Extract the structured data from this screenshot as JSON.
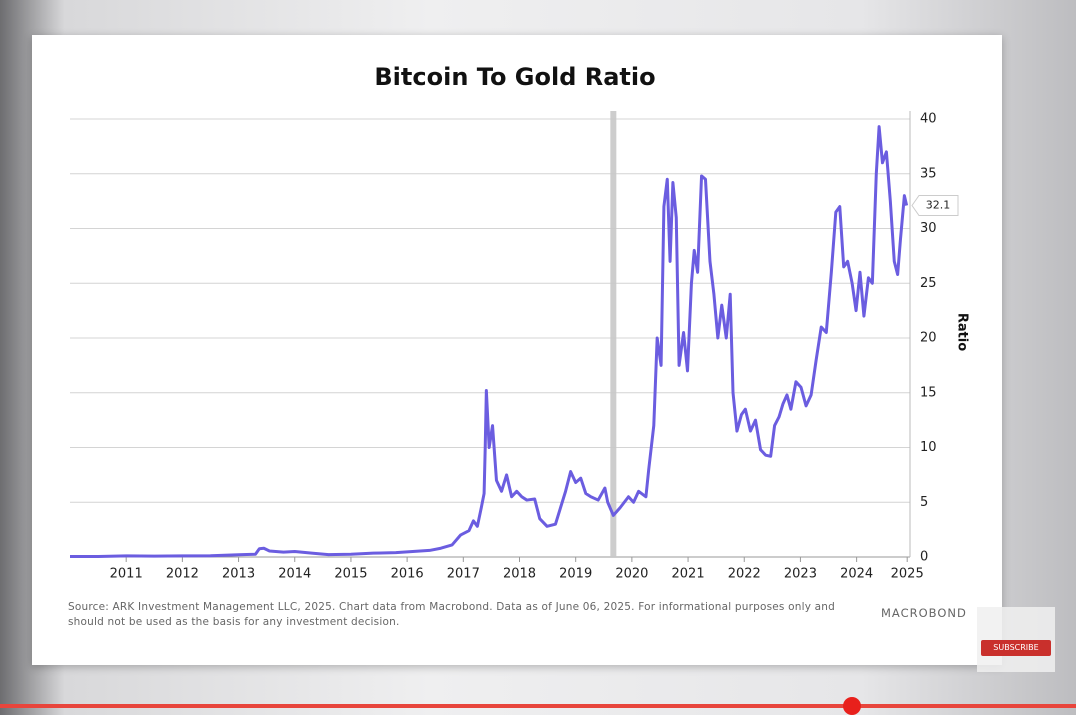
{
  "chart_data": {
    "type": "line",
    "title": "Bitcoin To Gold Ratio",
    "y_label": "Ratio",
    "x": [
      2010.5,
      2011.0,
      2011.5,
      2012.0,
      2012.5,
      2013.0,
      2013.5,
      2013.8,
      2013.87,
      2013.95,
      2014.05,
      2014.3,
      2014.5,
      2014.8,
      2015.1,
      2015.5,
      2015.9,
      2016.3,
      2016.6,
      2016.9,
      2017.1,
      2017.3,
      2017.45,
      2017.6,
      2017.68,
      2017.75,
      2017.82,
      2017.87,
      2017.89,
      2017.91,
      2017.96,
      2018.02,
      2018.09,
      2018.18,
      2018.27,
      2018.36,
      2018.45,
      2018.54,
      2018.63,
      2018.77,
      2018.86,
      2018.99,
      2019.14,
      2019.23,
      2019.32,
      2019.41,
      2019.5,
      2019.59,
      2019.68,
      2019.77,
      2019.9,
      2020.02,
      2020.07,
      2020.17,
      2020.29,
      2020.44,
      2020.53,
      2020.62,
      2020.75,
      2020.8,
      2020.89,
      2020.95,
      2021.02,
      2021.07,
      2021.13,
      2021.18,
      2021.23,
      2021.29,
      2021.34,
      2021.42,
      2021.49,
      2021.56,
      2021.61,
      2021.67,
      2021.74,
      2021.81,
      2021.89,
      2021.96,
      2022.03,
      2022.1,
      2022.18,
      2022.25,
      2022.3,
      2022.37,
      2022.45,
      2022.52,
      2022.61,
      2022.7,
      2022.79,
      2022.88,
      2022.97,
      2023.04,
      2023.12,
      2023.19,
      2023.26,
      2023.33,
      2023.42,
      2023.51,
      2023.6,
      2023.69,
      2023.78,
      2023.87,
      2023.96,
      2024.05,
      2024.13,
      2024.2,
      2024.27,
      2024.34,
      2024.42,
      2024.49,
      2024.56,
      2024.63,
      2024.71,
      2024.78,
      2024.85,
      2024.9,
      2024.96,
      2025.03,
      2025.1,
      2025.17,
      2025.23,
      2025.28,
      2025.35,
      2025.39
    ],
    "series": [
      {
        "name": "Bitcoin To Gold Ratio",
        "color": "#6b5de0",
        "values": [
          0.05,
          0.05,
          0.1,
          0.08,
          0.1,
          0.12,
          0.2,
          0.25,
          0.75,
          0.8,
          0.55,
          0.45,
          0.5,
          0.35,
          0.22,
          0.25,
          0.35,
          0.4,
          0.5,
          0.6,
          0.8,
          1.1,
          2.0,
          2.4,
          3.3,
          2.8,
          4.5,
          5.8,
          10,
          15.2,
          10,
          12,
          7,
          6,
          7.5,
          5.5,
          6,
          5.5,
          5.2,
          5.3,
          3.5,
          2.8,
          3.0,
          4.5,
          6,
          7.8,
          6.8,
          7.2,
          5.8,
          5.5,
          5.2,
          6.3,
          5,
          3.8,
          4.5,
          5.5,
          5,
          6,
          5.5,
          8,
          12,
          20,
          17.5,
          32,
          34.5,
          27,
          34.2,
          31,
          17.5,
          20.5,
          17,
          25,
          28,
          26,
          34.8,
          34.5,
          27,
          24,
          20,
          23,
          20,
          24,
          15,
          11.5,
          13,
          13.5,
          11.5,
          12.5,
          9.8,
          9.3,
          9.2,
          12,
          12.8,
          14,
          14.8,
          13.5,
          16,
          15.5,
          13.8,
          14.8,
          18,
          21,
          20.5,
          26,
          31.5,
          32,
          26.5,
          27,
          25,
          22.5,
          26,
          22,
          25.5,
          25,
          35,
          39.3,
          36,
          37,
          32.5,
          27,
          25.8,
          29,
          33,
          32.1
        ]
      }
    ],
    "xlim": [
      2010.5,
      2025.45
    ],
    "xticks": [
      {
        "value": 2011.5,
        "label": "2011"
      },
      {
        "value": 2012.5,
        "label": "2012"
      },
      {
        "value": 2013.5,
        "label": "2013"
      },
      {
        "value": 2014.5,
        "label": "2014"
      },
      {
        "value": 2015.5,
        "label": "2015"
      },
      {
        "value": 2016.5,
        "label": "2016"
      },
      {
        "value": 2017.5,
        "label": "2017"
      },
      {
        "value": 2018.5,
        "label": "2018"
      },
      {
        "value": 2019.5,
        "label": "2019"
      },
      {
        "value": 2020.5,
        "label": "2020"
      },
      {
        "value": 2021.5,
        "label": "2021"
      },
      {
        "value": 2022.5,
        "label": "2022"
      },
      {
        "value": 2023.5,
        "label": "2023"
      },
      {
        "value": 2024.5,
        "label": "2024"
      },
      {
        "value": 2025.4,
        "label": "2025"
      }
    ],
    "ylim": [
      0,
      40
    ],
    "yticks": [
      0,
      5,
      10,
      15,
      20,
      25,
      30,
      35,
      40
    ],
    "grid": true,
    "y_axis_side": "right",
    "highlight_x": 2020.17,
    "source": "Source: ARK Investment Management LLC, 2025. Chart data from Macrobond. Data as of June 06, 2025. For informational purposes only and should not be used as the basis for any investment decision.",
    "logo": "MACROBOND"
  },
  "overlay": {
    "subscribe": "SUBSCRIBE"
  }
}
